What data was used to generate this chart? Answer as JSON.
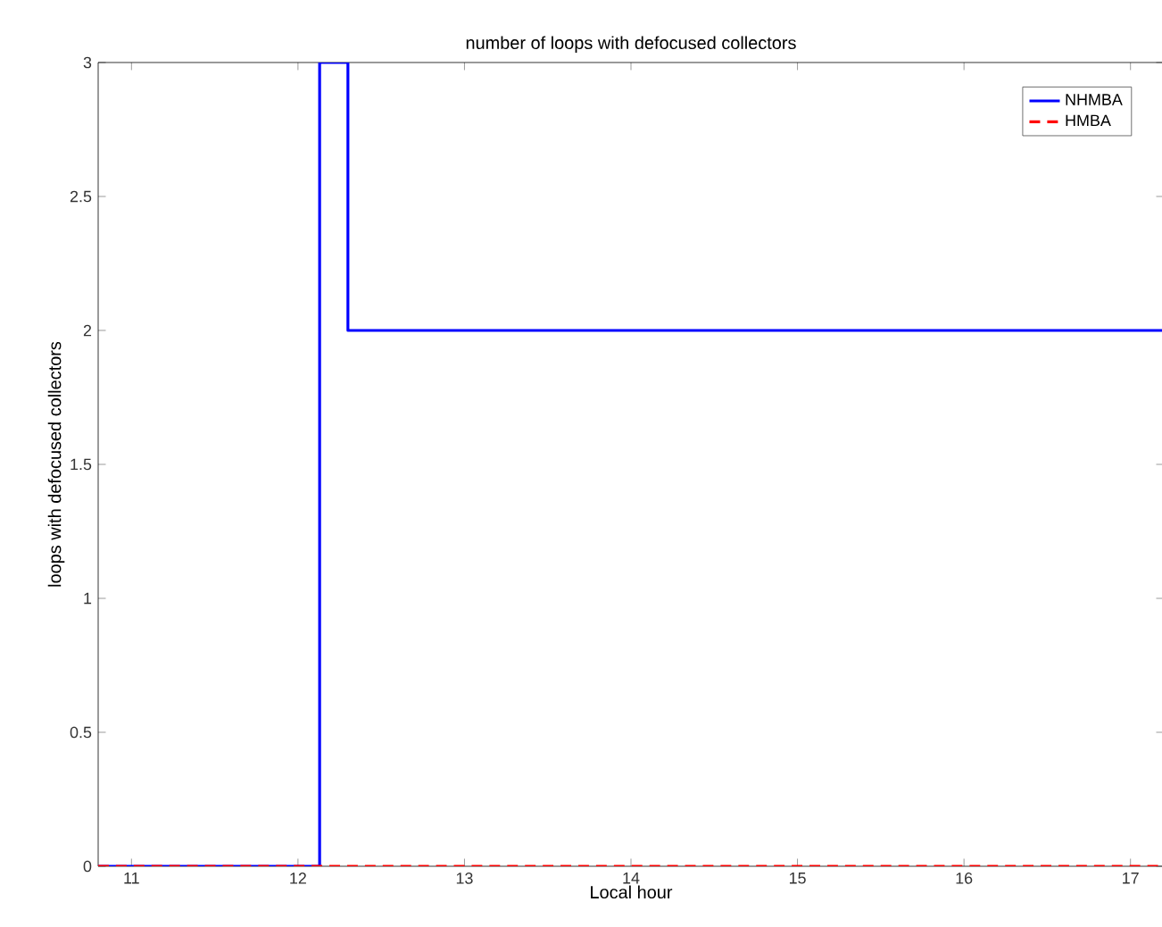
{
  "chart_data": {
    "type": "line",
    "title": "number of loops with defocused collectors",
    "xlabel": "Local hour",
    "ylabel": "loops with defocused collectors",
    "series": [
      {
        "name": "NHMBA",
        "color": "#0000ff",
        "line_style": "solid",
        "x": [
          10.8,
          12.13,
          12.13,
          12.3,
          12.3,
          17.2
        ],
        "values": [
          0,
          0,
          3,
          3,
          2,
          2
        ]
      },
      {
        "name": "HMBA",
        "color": "#ff0000",
        "line_style": "dashed",
        "x": [
          10.8,
          17.2
        ],
        "values": [
          0,
          0
        ]
      }
    ],
    "xlim": [
      10.8,
      17.2
    ],
    "xticks": [
      11,
      12,
      13,
      14,
      15,
      16,
      17
    ],
    "ylim": [
      0,
      3
    ],
    "yticks": [
      0,
      0.5,
      1,
      1.5,
      2,
      2.5,
      3
    ],
    "grid": false,
    "legend": "top right",
    "marker": "none"
  }
}
